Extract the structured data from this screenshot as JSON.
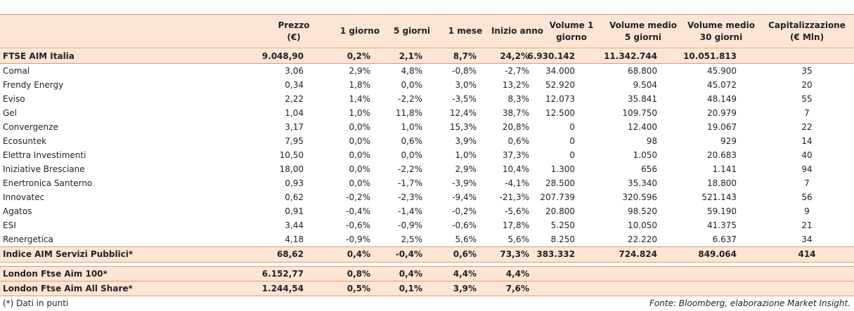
{
  "table": {
    "headers": [
      [
        "Prezzo",
        "(€)"
      ],
      [
        "1 giorno"
      ],
      [
        "5 giorni"
      ],
      [
        "1 mese"
      ],
      [
        "Inizio anno"
      ],
      [
        "Volume 1",
        "giorno"
      ],
      [
        "Volume medio",
        "5 giorni"
      ],
      [
        "Volume medio",
        "30 giorni"
      ],
      [
        "Capitalizzazione",
        "(€ Mln)"
      ]
    ],
    "index_row": [
      "FTSE AIM Italia",
      "9.048,90",
      "0,2%",
      "2,1%",
      "8,7%",
      "24,2%",
      "6.930.142",
      "11.342.744",
      "10.051.813"
    ],
    "rows": [
      [
        "Comal",
        "3,06",
        "2,9%",
        "4,8%",
        "-0,8%",
        "-2,7%",
        "34.000",
        "68.800",
        "45.900",
        "35"
      ],
      [
        "Frendy Energy",
        "0,34",
        "1,8%",
        "0,0%",
        "3,0%",
        "13,2%",
        "52.920",
        "9.504",
        "45.072",
        "20"
      ],
      [
        "Eviso",
        "2,22",
        "1,4%",
        "-2,2%",
        "-3,5%",
        "8,3%",
        "12.073",
        "35.841",
        "48.149",
        "55"
      ],
      [
        "Gel",
        "1,04",
        "1,0%",
        "11,8%",
        "12,4%",
        "38,7%",
        "12.500",
        "109.750",
        "20.979",
        "7"
      ],
      [
        "Convergenze",
        "3,17",
        "0,0%",
        "1,0%",
        "15,3%",
        "20,8%",
        "0",
        "12.400",
        "19.067",
        "22"
      ],
      [
        "Ecosuntek",
        "7,95",
        "0,0%",
        "0,6%",
        "3,9%",
        "0,6%",
        "0",
        "98",
        "929",
        "14"
      ],
      [
        "Elettra Investimenti",
        "10,50",
        "0,0%",
        "0,0%",
        "1,0%",
        "37,3%",
        "0",
        "1.050",
        "20.683",
        "40"
      ],
      [
        "Iniziative Bresciane",
        "18,00",
        "0,0%",
        "-2,2%",
        "2,9%",
        "10,4%",
        "1.300",
        "656",
        "1.141",
        "94"
      ],
      [
        "Enertronica Santerno",
        "0,93",
        "0,0%",
        "-1,7%",
        "-3,9%",
        "-4,1%",
        "28.500",
        "35.340",
        "18.800",
        "7"
      ],
      [
        "Innovatec",
        "0,62",
        "-0,2%",
        "-2,3%",
        "-9,4%",
        "-21,3%",
        "207.739",
        "320.596",
        "521.143",
        "56"
      ],
      [
        "Agatos",
        "0,91",
        "-0,4%",
        "-1,4%",
        "-0,2%",
        "-5,6%",
        "20.800",
        "98.520",
        "59.190",
        "9"
      ],
      [
        "ESI",
        "3,44",
        "-0,6%",
        "-0,9%",
        "-0,6%",
        "17,8%",
        "5.250",
        "10.050",
        "41.375",
        "21"
      ],
      [
        "Renergetica",
        "4,18",
        "-0,9%",
        "2,5%",
        "5,6%",
        "5,6%",
        "8.250",
        "22.220",
        "6.637",
        "34"
      ]
    ],
    "sector_index_row": [
      "Indice AIM Servizi Pubblici*",
      "68,62",
      "0,4%",
      "-0,4%",
      "0,6%",
      "73,3%",
      "383.332",
      "724.824",
      "849.064",
      "414"
    ],
    "london_rows": [
      [
        "London Ftse Aim 100*",
        "6.152,77",
        "0,8%",
        "0,4%",
        "4,4%",
        "4,4%"
      ],
      [
        "London Ftse Aim All Share*",
        "1.244,54",
        "0,5%",
        "0,1%",
        "3,9%",
        "7,6%"
      ]
    ],
    "footnote": "(*) Dati in punti",
    "source": "Fonte: Bloomberg, elaborazione Market Insight."
  }
}
